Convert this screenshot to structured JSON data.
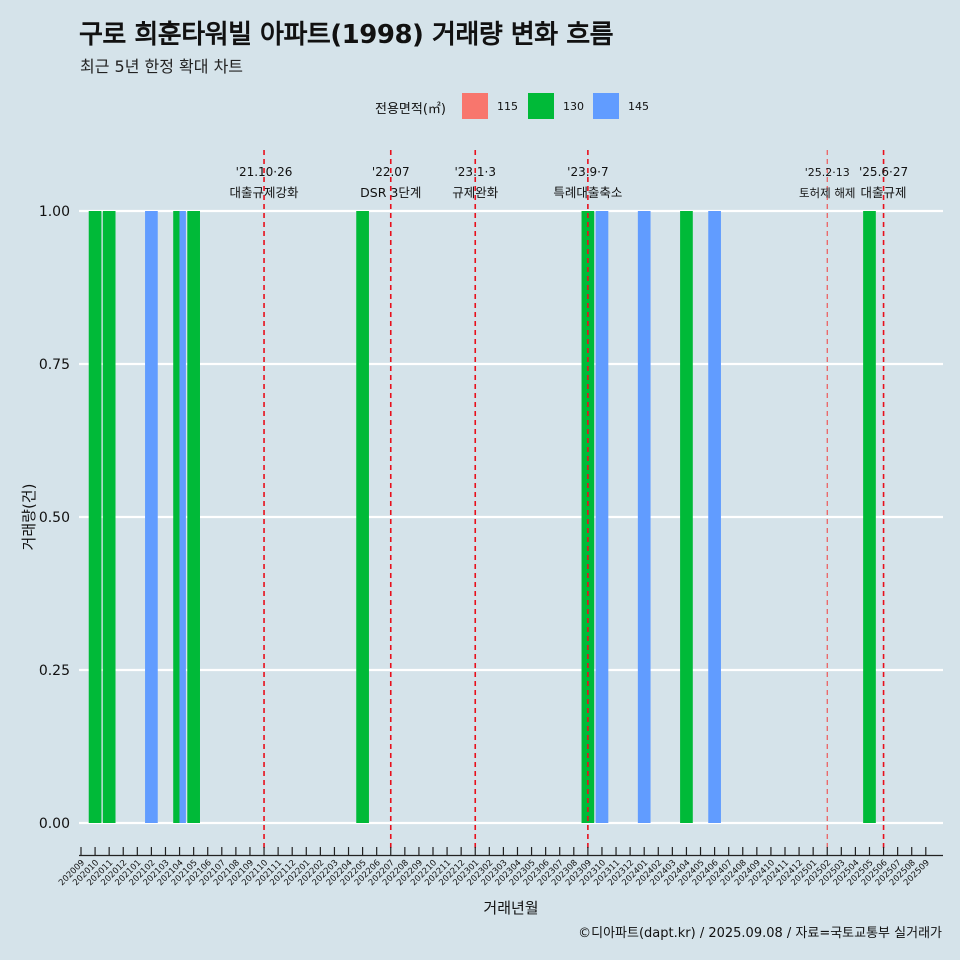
{
  "title": "구로 희훈타워빌 아파트(1998) 거래량 변화 흐름",
  "subtitle": "최근 5년 한정 확대 차트",
  "caption": "©디아파트(dapt.kr) / 2025.09.08 / 자료=국토교통부 실거래가",
  "legend": {
    "title": "전용면적(㎡)",
    "items": [
      {
        "label": "115",
        "color": "#f8766d"
      },
      {
        "label": "130",
        "color": "#00ba38"
      },
      {
        "label": "145",
        "color": "#619cff"
      }
    ]
  },
  "chart_data": {
    "type": "bar",
    "title": "구로 희훈타워빌 아파트(1998) 거래량 변화 흐름",
    "xlabel": "거래년월",
    "ylabel": "거래량(건)",
    "ylim": [
      0,
      1
    ],
    "yticks": [
      "0.00",
      "0.25",
      "0.50",
      "0.75",
      "1.00"
    ],
    "categories": [
      "202009",
      "202010",
      "202011",
      "202012",
      "202101",
      "202102",
      "202103",
      "202104",
      "202105",
      "202106",
      "202107",
      "202108",
      "202109",
      "202110",
      "202111",
      "202112",
      "202201",
      "202202",
      "202203",
      "202204",
      "202205",
      "202206",
      "202207",
      "202208",
      "202209",
      "202210",
      "202211",
      "202212",
      "202301",
      "202302",
      "202303",
      "202304",
      "202305",
      "202306",
      "202307",
      "202308",
      "202309",
      "202310",
      "202311",
      "202312",
      "202401",
      "202402",
      "202403",
      "202404",
      "202405",
      "202406",
      "202407",
      "202408",
      "202409",
      "202410",
      "202411",
      "202412",
      "202501",
      "202502",
      "202503",
      "202504",
      "202505",
      "202506",
      "202507",
      "202508",
      "202509"
    ],
    "series": [
      {
        "name": "115",
        "color": "#f8766d",
        "points": []
      },
      {
        "name": "130",
        "color": "#00ba38",
        "points": [
          {
            "x": "202010",
            "y": 1
          },
          {
            "x": "202011",
            "y": 1
          },
          {
            "x": "202104",
            "y": 1
          },
          {
            "x": "202105",
            "y": 1
          },
          {
            "x": "202205",
            "y": 1
          },
          {
            "x": "202309",
            "y": 1
          },
          {
            "x": "202404",
            "y": 1
          },
          {
            "x": "202505",
            "y": 1
          }
        ]
      },
      {
        "name": "145",
        "color": "#619cff",
        "points": [
          {
            "x": "202102",
            "y": 1
          },
          {
            "x": "202104",
            "y": 1
          },
          {
            "x": "202310",
            "y": 1
          },
          {
            "x": "202401",
            "y": 1
          },
          {
            "x": "202406",
            "y": 1
          }
        ]
      }
    ],
    "annotations": [
      {
        "x": "202110",
        "line1": "'21.10·26",
        "line2": "대출규제강화",
        "style": "bold"
      },
      {
        "x": "202207",
        "line1": "'22.07",
        "line2": "DSR 3단계",
        "style": "bold"
      },
      {
        "x": "202301",
        "line1": "'23.1·3",
        "line2": "규제완화",
        "style": "bold"
      },
      {
        "x": "202309",
        "line1": "'23.9·7",
        "line2": "특례대출축소",
        "style": "bold"
      },
      {
        "x": "202502",
        "line1": "'25.2·13",
        "line2": "토허제 해제",
        "style": "light"
      },
      {
        "x": "202506",
        "line1": "'25.6·27",
        "line2": "대출규제",
        "style": "bold"
      }
    ]
  }
}
